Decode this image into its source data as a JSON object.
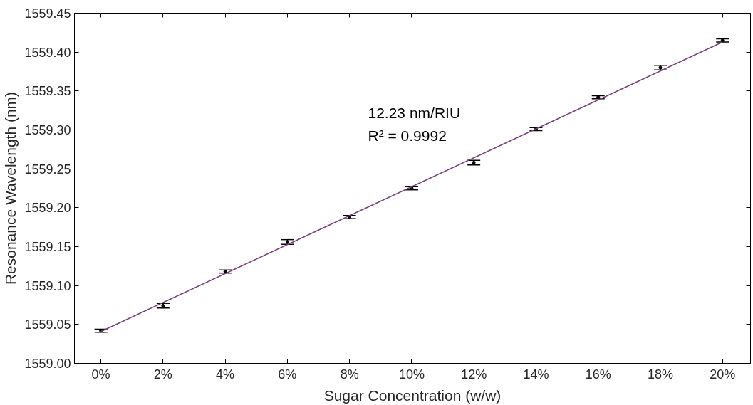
{
  "chart_data": {
    "type": "scatter",
    "xlabel": "Sugar Concentration (w/w)",
    "ylabel": "Resonance Wavelength (nm)",
    "x": [
      0,
      2,
      4,
      6,
      8,
      10,
      12,
      14,
      16,
      18,
      20
    ],
    "series": [
      {
        "color": "#000000",
        "marker": "circle",
        "values": [
          1559.042,
          1559.074,
          1559.118,
          1559.156,
          1559.188,
          1559.225,
          1559.258,
          1559.301,
          1559.342,
          1559.38,
          1559.415
        ],
        "errors": [
          0.002,
          0.003,
          0.002,
          0.003,
          0.002,
          0.002,
          0.003,
          0.002,
          0.002,
          0.003,
          0.002
        ]
      },
      {
        "type": "line",
        "color": "#7a3f7a",
        "x": [
          0,
          20
        ],
        "values": [
          1559.041,
          1559.413
        ],
        "line_style": "solid",
        "marker": "none"
      }
    ],
    "xlim": [
      -0.85,
      20.9
    ],
    "ylim": [
      1559.0,
      1559.45
    ],
    "xticks": [
      {
        "value": 0,
        "label": "0%"
      },
      {
        "value": 2,
        "label": "2%"
      },
      {
        "value": 4,
        "label": "4%"
      },
      {
        "value": 6,
        "label": "6%"
      },
      {
        "value": 8,
        "label": "8%"
      },
      {
        "value": 10,
        "label": "10%"
      },
      {
        "value": 12,
        "label": "12%"
      },
      {
        "value": 14,
        "label": "14%"
      },
      {
        "value": 16,
        "label": "16%"
      },
      {
        "value": 18,
        "label": "18%"
      },
      {
        "value": 20,
        "label": "20%"
      }
    ],
    "yticks": [
      {
        "value": 1559.0,
        "label": "1559.00"
      },
      {
        "value": 1559.05,
        "label": "1559.05"
      },
      {
        "value": 1559.1,
        "label": "1559.10"
      },
      {
        "value": 1559.15,
        "label": "1559.15"
      },
      {
        "value": 1559.2,
        "label": "1559.20"
      },
      {
        "value": 1559.25,
        "label": "1559.25"
      },
      {
        "value": 1559.3,
        "label": "1559.30"
      },
      {
        "value": 1559.35,
        "label": "1559.35"
      },
      {
        "value": 1559.4,
        "label": "1559.40"
      },
      {
        "value": 1559.45,
        "label": "1559.45"
      }
    ],
    "annotations": [
      "12.23 nm/RIU",
      "R² = 0.9992"
    ],
    "grid": false
  }
}
